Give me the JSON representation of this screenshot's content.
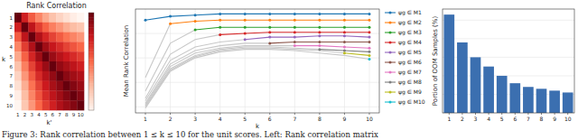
{
  "chart_data": [
    {
      "type": "heatmap",
      "title": "Rank Correlation",
      "xlabel": "k'",
      "ylabel": "k",
      "categories": [
        1,
        2,
        3,
        4,
        5,
        6,
        7,
        8,
        9,
        10
      ],
      "cells": [
        [
          1.0,
          0.85,
          0.75,
          0.68,
          0.62,
          0.57,
          0.53,
          0.5,
          0.47,
          0.45
        ],
        [
          0.85,
          1.0,
          0.88,
          0.8,
          0.74,
          0.69,
          0.65,
          0.61,
          0.58,
          0.56
        ],
        [
          0.75,
          0.88,
          1.0,
          0.9,
          0.84,
          0.79,
          0.75,
          0.71,
          0.68,
          0.65
        ],
        [
          0.68,
          0.8,
          0.9,
          1.0,
          0.92,
          0.87,
          0.83,
          0.79,
          0.76,
          0.73
        ],
        [
          0.62,
          0.74,
          0.84,
          0.92,
          1.0,
          0.93,
          0.89,
          0.86,
          0.83,
          0.8
        ],
        [
          0.57,
          0.69,
          0.79,
          0.87,
          0.93,
          1.0,
          0.94,
          0.91,
          0.88,
          0.85
        ],
        [
          0.53,
          0.65,
          0.75,
          0.83,
          0.89,
          0.94,
          1.0,
          0.95,
          0.92,
          0.9
        ],
        [
          0.5,
          0.61,
          0.71,
          0.79,
          0.86,
          0.91,
          0.95,
          1.0,
          0.96,
          0.93
        ],
        [
          0.47,
          0.58,
          0.68,
          0.76,
          0.83,
          0.88,
          0.92,
          0.96,
          1.0,
          0.96
        ],
        [
          0.45,
          0.56,
          0.65,
          0.73,
          0.8,
          0.85,
          0.9,
          0.93,
          0.96,
          1.0
        ]
      ],
      "colorbar_range": [
        0.45,
        1.0
      ]
    },
    {
      "type": "line",
      "ylabel": "Mean Rank Correlation",
      "xlabel": "k",
      "x": [
        1,
        2,
        3,
        4,
        5,
        6,
        7,
        8,
        9,
        10
      ],
      "xlim": [
        0.6,
        10.4
      ],
      "xticks": [
        1,
        2,
        3,
        4,
        5,
        6,
        7,
        8,
        9,
        10
      ],
      "ylim": [
        0.15,
        1.0
      ],
      "yticks": [
        0.2,
        0.4,
        0.6,
        0.8
      ],
      "grid": true,
      "legend": "right",
      "tick_labels": "x",
      "series": [
        {
          "name": "ψg ∈ M1",
          "color": "#1f77b4",
          "marker": "o",
          "values": [
            0.91,
            0.94,
            0.95,
            0.96,
            0.96,
            0.96,
            0.96,
            0.96,
            0.96,
            0.96
          ]
        },
        {
          "name": "ψg ∈ M2",
          "color": "#ff7f0e",
          "marker": "o",
          "values": [
            null,
            0.88,
            0.9,
            0.91,
            0.91,
            0.91,
            0.91,
            0.91,
            0.91,
            0.91
          ]
        },
        {
          "name": "ψg ∈ M3",
          "color": "#2ca02c",
          "marker": "o",
          "values": [
            null,
            null,
            0.83,
            0.85,
            0.85,
            0.85,
            0.85,
            0.85,
            0.85,
            0.85
          ]
        },
        {
          "name": "ψg ∈ M4",
          "color": "#d62728",
          "marker": "o",
          "values": [
            null,
            null,
            null,
            0.79,
            0.8,
            0.81,
            0.81,
            0.81,
            0.81,
            0.81
          ]
        },
        {
          "name": "ψg ∈ M5",
          "color": "#9467bd",
          "marker": "o",
          "values": [
            null,
            null,
            null,
            null,
            0.75,
            0.77,
            0.77,
            0.78,
            0.78,
            0.77
          ]
        },
        {
          "name": "ψg ∈ M6",
          "color": "#8c564b",
          "marker": "o",
          "values": [
            null,
            null,
            null,
            null,
            null,
            0.72,
            0.73,
            0.73,
            0.73,
            0.73
          ]
        },
        {
          "name": "ψg ∈ M7",
          "color": "#e377c2",
          "marker": "o",
          "values": [
            null,
            null,
            null,
            null,
            null,
            null,
            0.7,
            0.7,
            0.69,
            0.68
          ]
        },
        {
          "name": "ψg ∈ M8",
          "color": "#7f7f7f",
          "marker": "o",
          "values": [
            null,
            null,
            null,
            null,
            null,
            null,
            null,
            0.67,
            0.66,
            0.65
          ]
        },
        {
          "name": "ψg ∈ M9",
          "color": "#bcbd22",
          "marker": "o",
          "values": [
            null,
            null,
            null,
            null,
            null,
            null,
            null,
            null,
            0.64,
            0.62
          ]
        },
        {
          "name": "ψg ∈ M10",
          "color": "#17becf",
          "marker": "o",
          "values": [
            null,
            null,
            null,
            null,
            null,
            null,
            null,
            null,
            null,
            0.59
          ]
        },
        {
          "color": "#c8c8c8",
          "values": [
            0.44,
            0.88,
            null,
            null,
            null,
            null,
            null,
            null,
            null,
            null
          ]
        },
        {
          "color": "#c8c8c8",
          "values": [
            0.33,
            0.72,
            0.83,
            null,
            null,
            null,
            null,
            null,
            null,
            null
          ]
        },
        {
          "color": "#c8c8c8",
          "values": [
            0.27,
            0.63,
            0.75,
            0.79,
            null,
            null,
            null,
            null,
            null,
            null
          ]
        },
        {
          "color": "#c8c8c8",
          "values": [
            0.25,
            0.58,
            0.69,
            0.73,
            0.75,
            null,
            null,
            null,
            null,
            null
          ]
        },
        {
          "color": "#c8c8c8",
          "values": [
            0.23,
            0.55,
            0.66,
            0.7,
            0.72,
            0.72,
            null,
            null,
            null,
            null
          ]
        },
        {
          "color": "#c8c8c8",
          "values": [
            0.22,
            0.53,
            0.64,
            0.68,
            0.7,
            0.7,
            0.7,
            null,
            null,
            null
          ]
        },
        {
          "color": "#c8c8c8",
          "values": [
            0.21,
            0.51,
            0.62,
            0.67,
            0.69,
            0.69,
            0.68,
            0.67,
            null,
            null
          ]
        },
        {
          "color": "#c8c8c8",
          "values": [
            0.2,
            0.5,
            0.61,
            0.66,
            0.68,
            0.68,
            0.67,
            0.66,
            0.64,
            null
          ]
        },
        {
          "color": "#c8c8c8",
          "values": [
            0.19,
            0.49,
            0.6,
            0.65,
            0.67,
            0.67,
            0.66,
            0.64,
            0.62,
            0.59
          ]
        }
      ]
    },
    {
      "type": "bar",
      "ylabel": "Portion of OOM Samples (%)",
      "categories": [
        1,
        2,
        3,
        4,
        5,
        6,
        7,
        8,
        9,
        10
      ],
      "values": [
        0.53,
        0.38,
        0.3,
        0.25,
        0.2,
        0.16,
        0.14,
        0.13,
        0.12,
        0.11
      ],
      "color": "#3b6fb0",
      "ylim": [
        0,
        0.56
      ],
      "yticks": [
        0,
        0.1,
        0.2,
        0.3,
        0.4,
        0.5
      ],
      "grid": true,
      "tick_labels": "x"
    }
  ],
  "caption": "Figure 3: Rank correlation between 1 ≤ k ≤ 10 for the unit scores. Left: Rank correlation matrix"
}
